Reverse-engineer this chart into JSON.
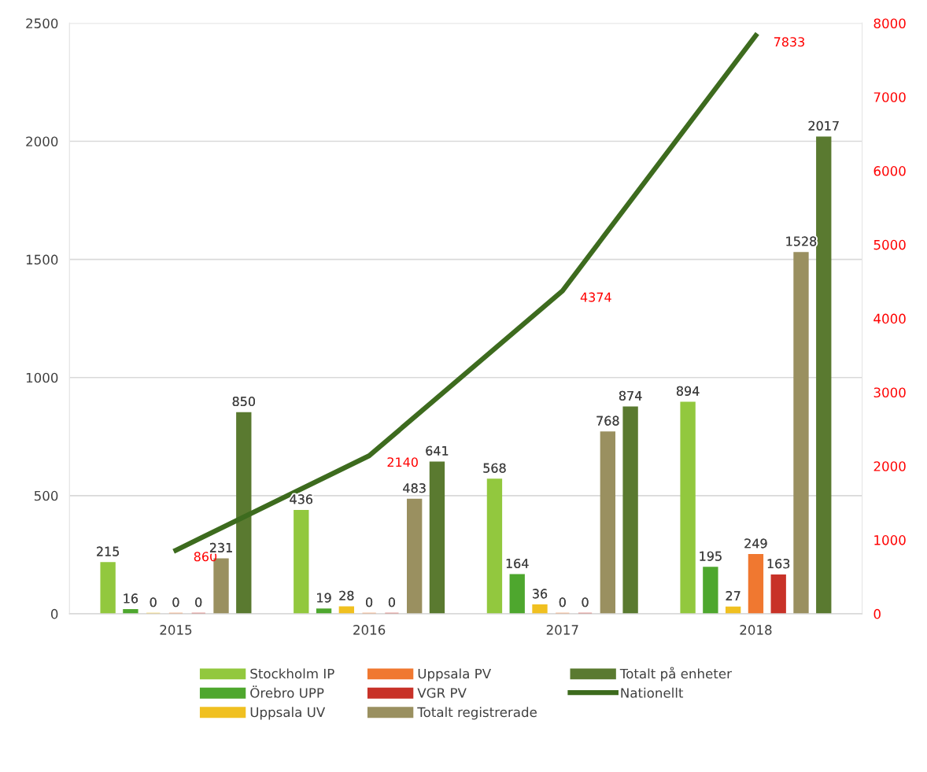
{
  "chart_data": {
    "type": "bar",
    "categories": [
      "2015",
      "2016",
      "2017",
      "2018"
    ],
    "series": [
      {
        "name": "Stockholm IP",
        "color": "#92c83e",
        "values": [
          215,
          436,
          568,
          894
        ]
      },
      {
        "name": "Örebro UPP",
        "color": "#4ea72e",
        "values": [
          16,
          19,
          164,
          195
        ]
      },
      {
        "name": "Uppsala UV",
        "color": "#f0c020",
        "values": [
          0,
          28,
          36,
          27
        ]
      },
      {
        "name": "Uppsala PV",
        "color": "#f07830",
        "values": [
          0,
          0,
          0,
          249
        ]
      },
      {
        "name": "VGR PV",
        "color": "#c83228",
        "values": [
          0,
          0,
          0,
          163
        ]
      },
      {
        "name": "Totalt registrerade",
        "color": "#9a9060",
        "values": [
          231,
          483,
          768,
          1528
        ]
      },
      {
        "name": "Totalt på enheter",
        "color": "#5a7a30",
        "values": [
          850,
          641,
          874,
          2017
        ]
      },
      {
        "name": "Nationellt",
        "type": "line",
        "axis": "y2",
        "color": "#3d6b1e",
        "values": [
          860,
          2140,
          4374,
          7833
        ]
      }
    ],
    "ylim": [
      0,
      2500
    ],
    "yticks": [
      0,
      500,
      1000,
      1500,
      2000,
      2500
    ],
    "y2lim": [
      0,
      8000
    ],
    "y2ticks": [
      0,
      1000,
      2000,
      3000,
      4000,
      5000,
      6000,
      7000,
      8000
    ],
    "data_labels": true,
    "grid": "y",
    "legend": "bottom",
    "marker": "none",
    "line_style": "solid"
  }
}
